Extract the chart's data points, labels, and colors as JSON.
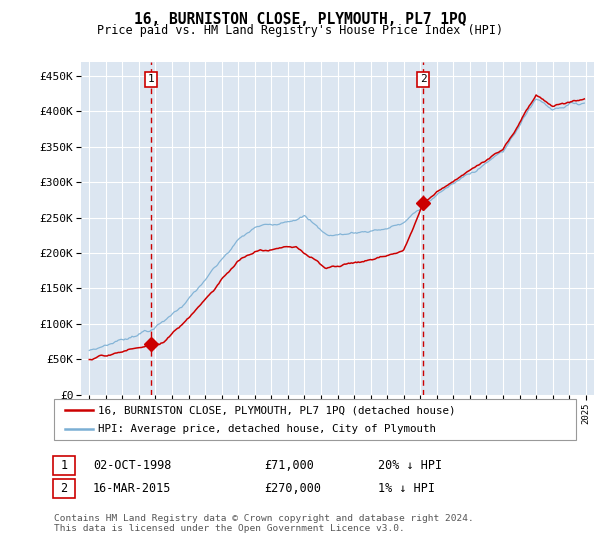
{
  "title": "16, BURNISTON CLOSE, PLYMOUTH, PL7 1PQ",
  "subtitle": "Price paid vs. HM Land Registry's House Price Index (HPI)",
  "footnote": "Contains HM Land Registry data © Crown copyright and database right 2024.\nThis data is licensed under the Open Government Licence v3.0.",
  "legend_line1": "16, BURNISTON CLOSE, PLYMOUTH, PL7 1PQ (detached house)",
  "legend_line2": "HPI: Average price, detached house, City of Plymouth",
  "sale1_date": "02-OCT-1998",
  "sale1_price": "£71,000",
  "sale1_hpi": "20% ↓ HPI",
  "sale2_date": "16-MAR-2015",
  "sale2_price": "£270,000",
  "sale2_hpi": "1% ↓ HPI",
  "sale1_year": 1998.75,
  "sale1_value": 71000,
  "sale2_year": 2015.17,
  "sale2_value": 270000,
  "ylim_min": 0,
  "ylim_max": 470000,
  "xlim_min": 1994.5,
  "xlim_max": 2025.5,
  "bg_color": "#dce6f1",
  "grid_color": "#ffffff",
  "red_line_color": "#cc0000",
  "blue_line_color": "#7bafd4",
  "dashed_line_color": "#cc0000",
  "marker_color": "#cc0000",
  "box_color": "#cc0000",
  "yticks": [
    0,
    50000,
    100000,
    150000,
    200000,
    250000,
    300000,
    350000,
    400000,
    450000
  ],
  "ytick_labels": [
    "£0",
    "£50K",
    "£100K",
    "£150K",
    "£200K",
    "£250K",
    "£300K",
    "£350K",
    "£400K",
    "£450K"
  ]
}
